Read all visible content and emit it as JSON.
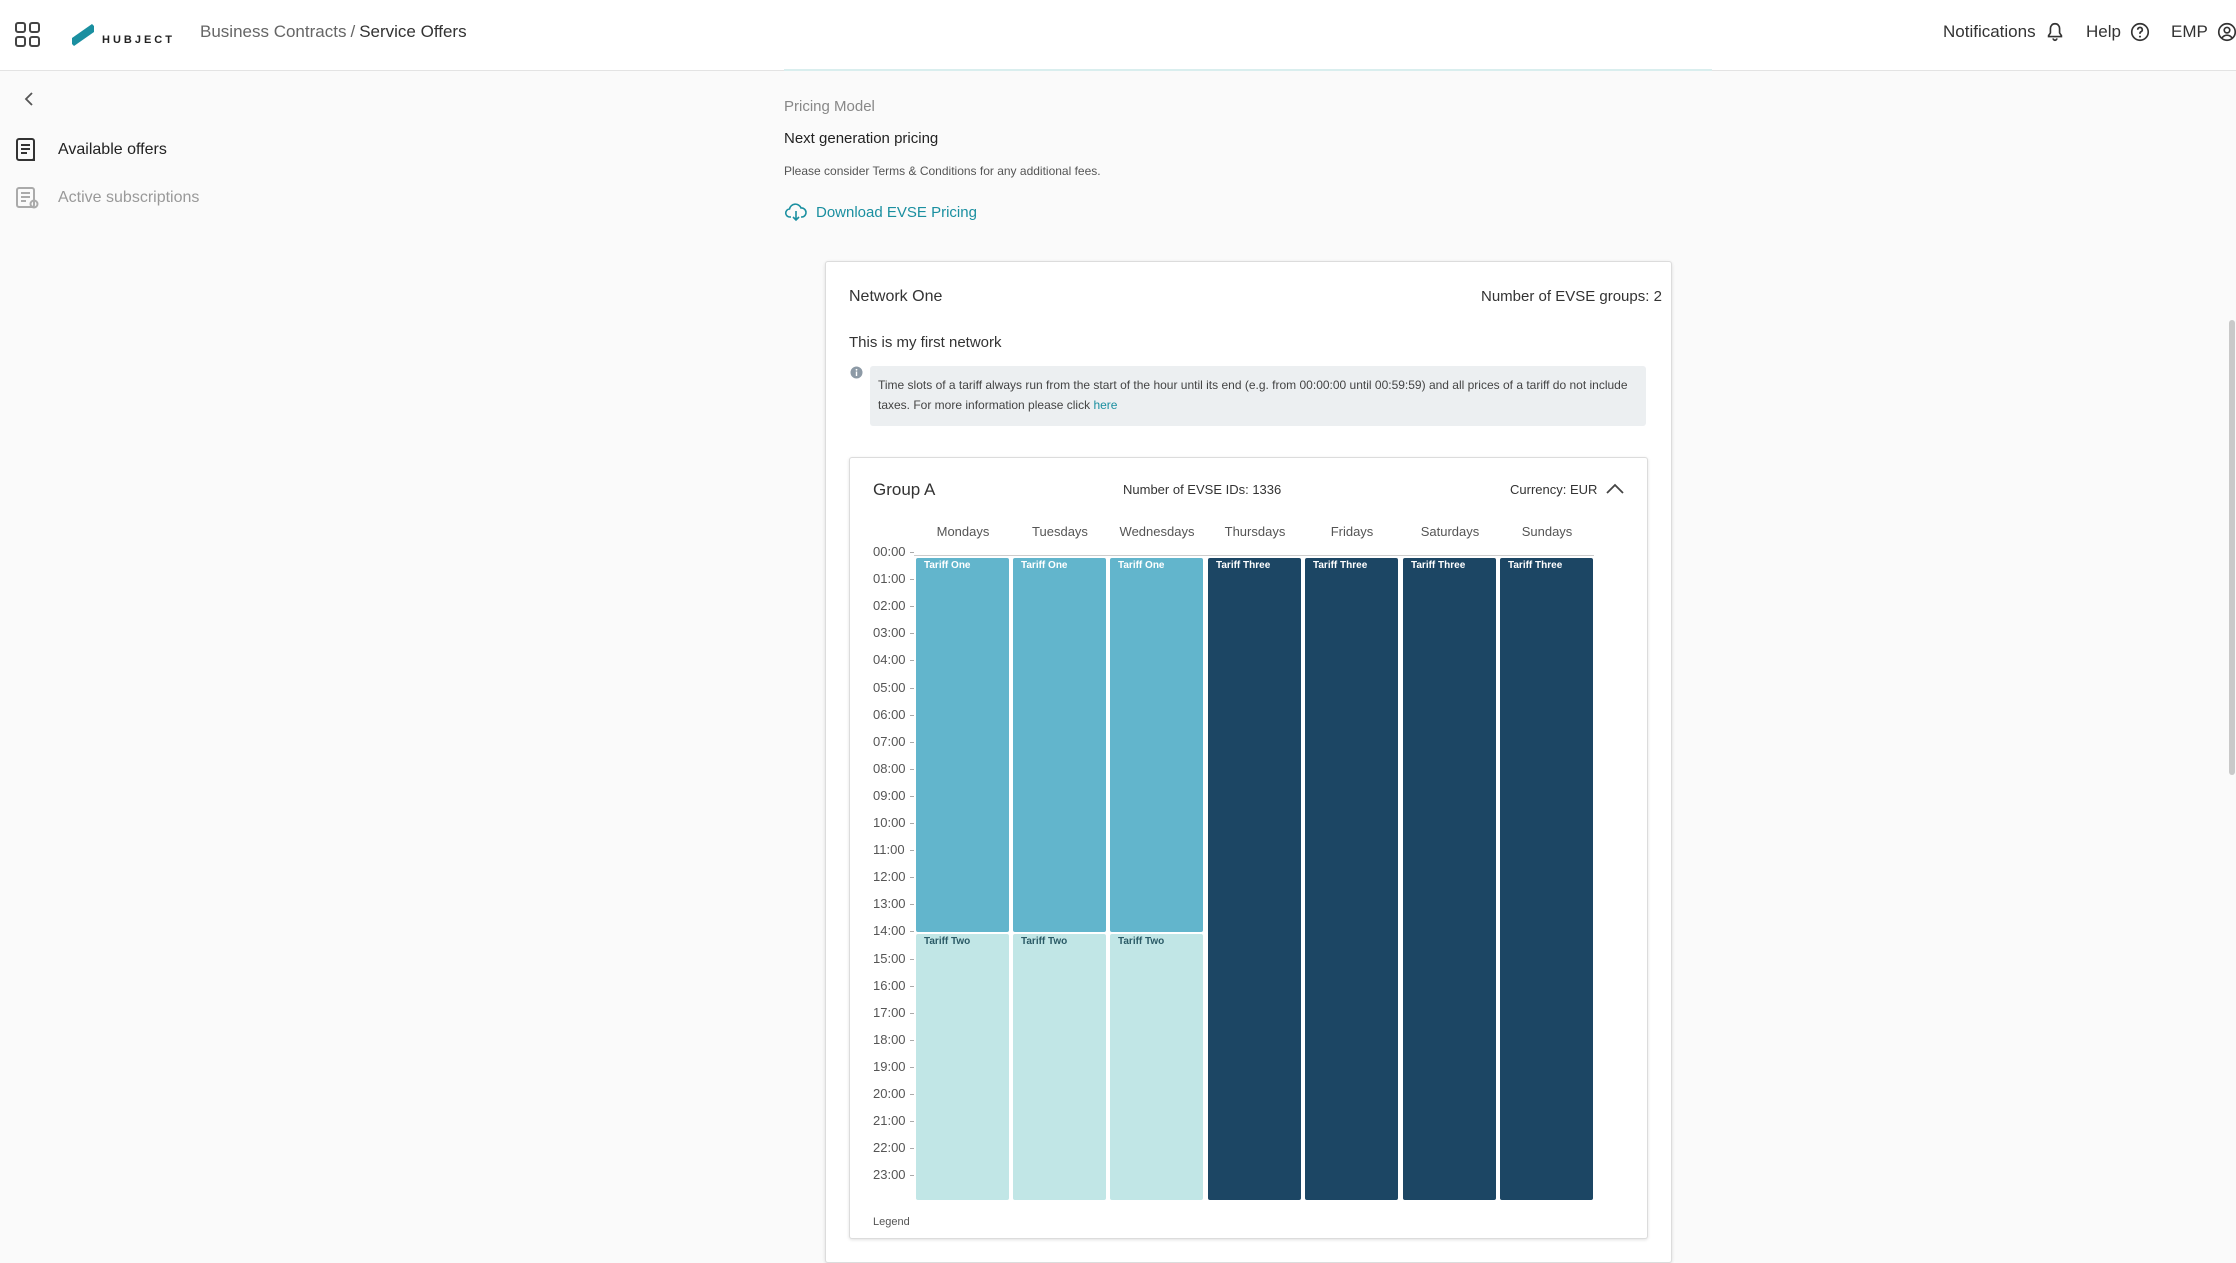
{
  "header": {
    "breadcrumb": {
      "section": "Business Contracts",
      "separator": "/",
      "current": "Service Offers"
    },
    "logo_text": "HUBJECT",
    "notifications_label": "Notifications",
    "help_label": "Help",
    "user_label": "EMP"
  },
  "sidebar": {
    "items": [
      {
        "label": "Available offers",
        "icon": "offers-list-icon",
        "active": true
      },
      {
        "label": "Active subscriptions",
        "icon": "subscriptions-icon",
        "active": false
      }
    ]
  },
  "main": {
    "pricing_model_label": "Pricing Model",
    "pricing_model_value": "Next generation pricing",
    "terms_note": "Please consider Terms & Conditions for any additional fees.",
    "download_label": "Download EVSE Pricing"
  },
  "network": {
    "name": "Network One",
    "evse_groups_count": "Number of EVSE groups: 2",
    "description": "This is my first network",
    "info_text": "Time slots of a tariff always run from the start of the hour until its end (e.g. from 00:00:00 until 00:59:59) and all prices of a tariff do not include taxes. For more information please click",
    "info_link": "here"
  },
  "group": {
    "name": "Group A",
    "evse_ids": "Number of EVSE IDs: 1336",
    "currency": "Currency: EUR",
    "days": [
      "Mondays",
      "Tuesdays",
      "Wednesdays",
      "Thursdays",
      "Fridays",
      "Saturdays",
      "Sundays"
    ],
    "hours": [
      "00:00",
      "01:00",
      "02:00",
      "03:00",
      "04:00",
      "05:00",
      "06:00",
      "07:00",
      "08:00",
      "09:00",
      "10:00",
      "11:00",
      "12:00",
      "13:00",
      "14:00",
      "15:00",
      "16:00",
      "17:00",
      "18:00",
      "19:00",
      "20:00",
      "21:00",
      "22:00",
      "23:00"
    ],
    "schedule": [
      [
        {
          "tariff": "Tariff One",
          "start": 0,
          "end": 14,
          "color": "#62b5cc"
        },
        {
          "tariff": "Tariff Two",
          "start": 14,
          "end": 24,
          "color": "#c1e6e6"
        }
      ],
      [
        {
          "tariff": "Tariff One",
          "start": 0,
          "end": 14,
          "color": "#62b5cc"
        },
        {
          "tariff": "Tariff Two",
          "start": 14,
          "end": 24,
          "color": "#c1e6e6"
        }
      ],
      [
        {
          "tariff": "Tariff One",
          "start": 0,
          "end": 14,
          "color": "#62b5cc"
        },
        {
          "tariff": "Tariff Two",
          "start": 14,
          "end": 24,
          "color": "#c1e6e6"
        }
      ],
      [
        {
          "tariff": "Tariff Three",
          "start": 0,
          "end": 24,
          "color": "#1c4664"
        }
      ],
      [
        {
          "tariff": "Tariff Three",
          "start": 0,
          "end": 24,
          "color": "#1c4664"
        }
      ],
      [
        {
          "tariff": "Tariff Three",
          "start": 0,
          "end": 24,
          "color": "#1c4664"
        }
      ],
      [
        {
          "tariff": "Tariff Three",
          "start": 0,
          "end": 24,
          "color": "#1c4664"
        }
      ]
    ],
    "legend_label": "Legend"
  },
  "colors": {
    "accent": "#1a8fa0",
    "tariff_one": "#62b5cc",
    "tariff_two": "#c1e6e6",
    "tariff_three": "#1c4664"
  }
}
